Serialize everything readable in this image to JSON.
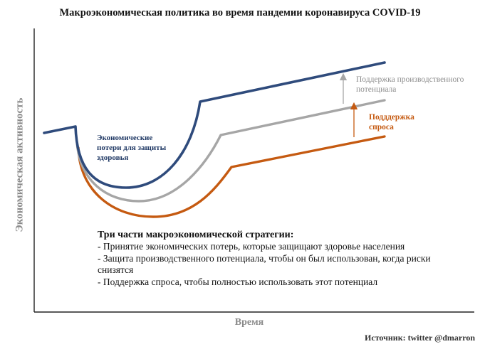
{
  "title": "Макроэкономическая политика во время пандемии коронавируса COVID-19",
  "y_axis_label": "Экономическая активность",
  "x_axis_label": "Время",
  "annotations": {
    "health_losses": [
      "Экономические",
      "потери для защиты",
      "здоровья"
    ],
    "productive_capacity": [
      "Поддержка производственного",
      "потенциала"
    ],
    "demand_support": [
      "Подддержка",
      "спроса"
    ]
  },
  "strategy": {
    "heading": "Три части макроэкономической стратегии:",
    "items": [
      "- Принятие экономических потерь, которые защищают здоровье населения",
      "- Защита производственного потенциала, чтобы он был использован, когда риски снизятся",
      "- Поддержка спроса, чтобы полностью использовать этот потенциал"
    ]
  },
  "source": "Источник: twitter @dmarron",
  "colors": {
    "health_curve": "#2f4b7c",
    "capacity_curve": "#a6a6a6",
    "demand_curve": "#c55a11",
    "axis": "#222222"
  }
}
